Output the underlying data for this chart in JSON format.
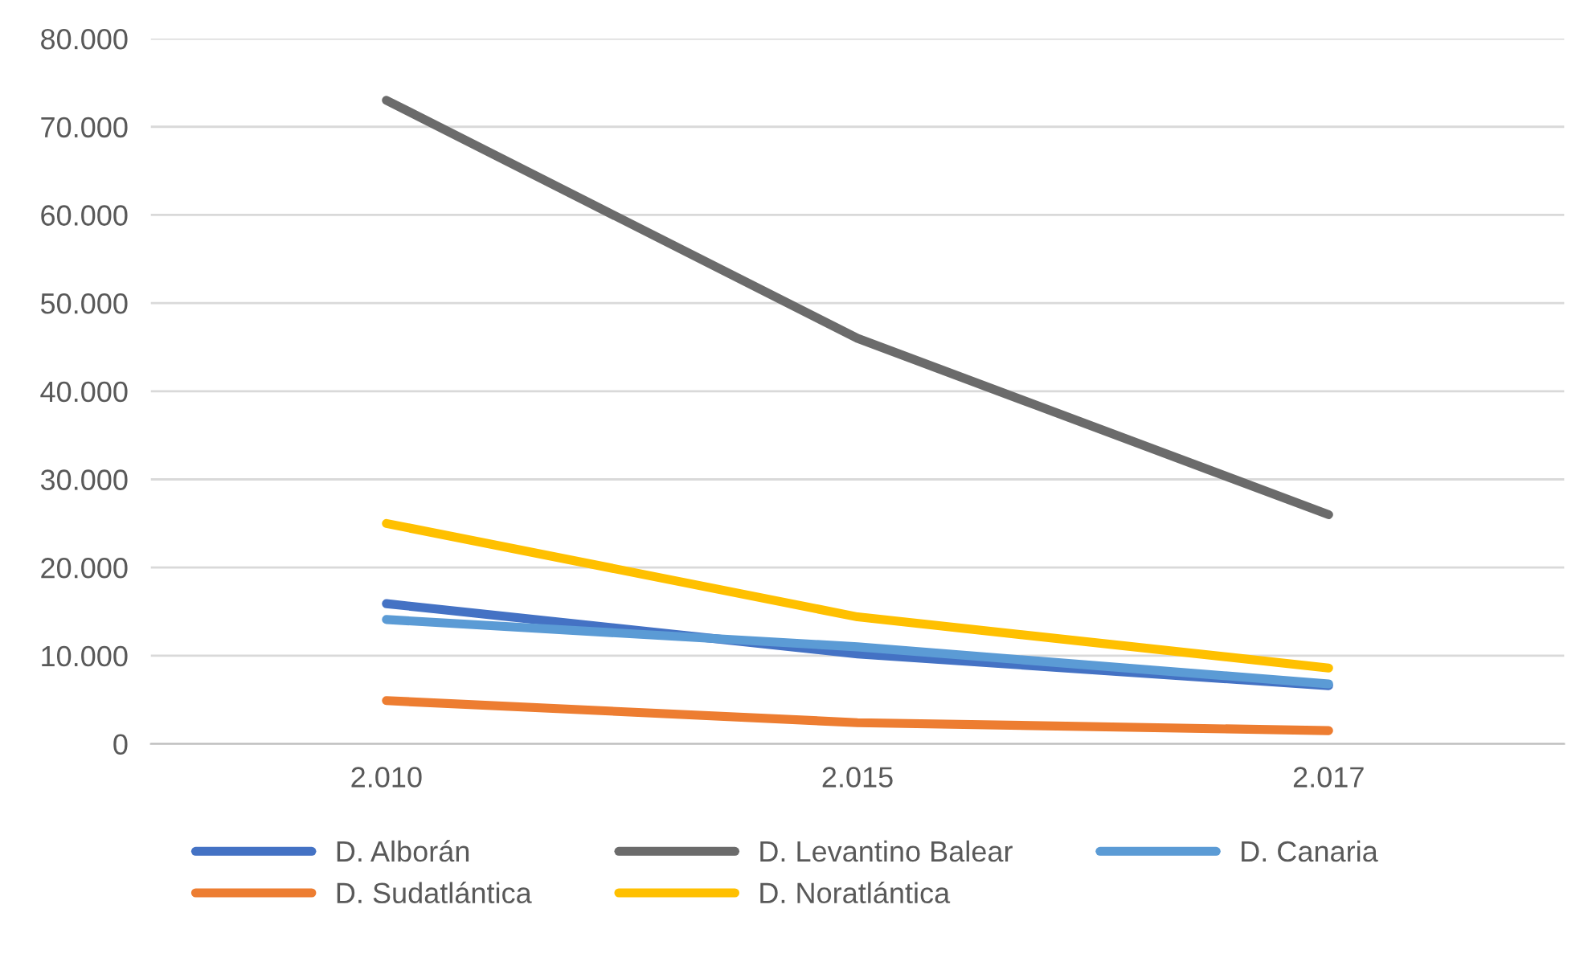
{
  "chart_data": {
    "type": "line",
    "categories": [
      "2.010",
      "2.015",
      "2.017"
    ],
    "series": [
      {
        "name": "D. Alborán",
        "color": "#4472c4",
        "values": [
          15900,
          10200,
          6600
        ]
      },
      {
        "name": "D. Sudatlántica",
        "color": "#ed7d31",
        "values": [
          4900,
          2400,
          1500
        ]
      },
      {
        "name": "D. Levantino Balear",
        "color": "#6b6b6b",
        "values": [
          73000,
          46000,
          26000
        ]
      },
      {
        "name": "D. Noratlántica",
        "color": "#ffc000",
        "values": [
          25000,
          14400,
          8600
        ]
      },
      {
        "name": "D. Canaria",
        "color": "#5b9bd5",
        "values": [
          14100,
          11000,
          6800
        ]
      }
    ],
    "ylim": [
      0,
      80000
    ],
    "yticks": [
      {
        "value": 0,
        "label": "0"
      },
      {
        "value": 10000,
        "label": "10.000"
      },
      {
        "value": 20000,
        "label": "20.000"
      },
      {
        "value": 30000,
        "label": "30.000"
      },
      {
        "value": 40000,
        "label": "40.000"
      },
      {
        "value": 50000,
        "label": "50.000"
      },
      {
        "value": 60000,
        "label": "60.000"
      },
      {
        "value": 70000,
        "label": "70.000"
      },
      {
        "value": 80000,
        "label": "80.000"
      }
    ],
    "grid": "y",
    "legend": "bottom",
    "marker": "none",
    "line_style": "solid"
  }
}
